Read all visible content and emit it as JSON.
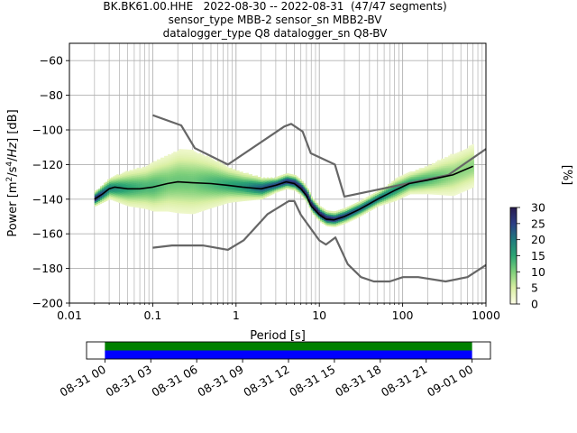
{
  "title_lines": [
    "BK.BK61.00.HHE   2022-08-30 -- 2022-08-31  (47/47 segments)",
    "sensor_type MBB-2 sensor_sn MBB2-BV",
    "datalogger_type Q8 datalogger_sn Q8-BV"
  ],
  "chart_data": {
    "type": "heatmap",
    "title": "BK.BK61.00.HHE   2022-08-30 -- 2022-08-31  (47/47 segments)",
    "xlabel": "Period [s]",
    "ylabel_text": "Power [m²/s⁴/Hz] [dB]",
    "x_scale": "log",
    "xlim": [
      0.01,
      1000
    ],
    "ylim": [
      -200,
      -50
    ],
    "x_ticks": [
      0.01,
      0.1,
      1,
      10,
      100,
      1000
    ],
    "x_tick_labels": [
      "0.01",
      "0.1",
      "1",
      "10",
      "100",
      "1000"
    ],
    "y_ticks": [
      -200,
      -180,
      -160,
      -140,
      -120,
      -100,
      -80,
      -60
    ],
    "y_tick_labels": [
      "−200",
      "−180",
      "−160",
      "−140",
      "−120",
      "−100",
      "−80",
      "−60"
    ],
    "grid": true,
    "colorbar": {
      "label": "[%]",
      "range": [
        0,
        30
      ],
      "ticks": [
        0,
        5,
        10,
        15,
        20,
        25,
        30
      ],
      "tick_labels": [
        "0",
        "5",
        "10",
        "15",
        "20",
        "25",
        "30"
      ],
      "colors": [
        "#fdfde6",
        "#d9efa3",
        "#7fd07b",
        "#2ba573",
        "#1f7a7e",
        "#2c3f86",
        "#291b4f"
      ]
    },
    "noise_model_high": {
      "name": "",
      "color": "#666666",
      "periods": [
        0.1,
        0.22,
        0.32,
        0.8,
        3.8,
        4.6,
        6.3,
        7.9,
        15.4,
        20,
        354.8,
        1000
      ],
      "values": [
        -91.5,
        -97.4,
        -110.5,
        -120,
        -98,
        -96.5,
        -101,
        -113.5,
        -120,
        -138.5,
        -126,
        -111
      ]
    },
    "noise_model_low": {
      "name": "",
      "color": "#666666",
      "periods": [
        0.1,
        0.17,
        0.4,
        0.8,
        1.24,
        2.4,
        4.3,
        5,
        6,
        10,
        12,
        15.6,
        21.9,
        31.6,
        45,
        70,
        101,
        154,
        328,
        600,
        1000
      ],
      "values": [
        -168,
        -166.7,
        -166.7,
        -169.2,
        -163.7,
        -148.6,
        -141.1,
        -141.1,
        -149,
        -163.8,
        -166.2,
        -162.1,
        -177.5,
        -185,
        -187.5,
        -187.5,
        -185,
        -185,
        -187.5,
        -185,
        -178
      ]
    },
    "mode_line": {
      "name": "",
      "color": "#000000",
      "periods": [
        0.02,
        0.025,
        0.03,
        0.035,
        0.05,
        0.07,
        0.1,
        0.15,
        0.2,
        0.3,
        0.5,
        0.8,
        1.2,
        2,
        3,
        4,
        5,
        6,
        7,
        8,
        10,
        12,
        15,
        20,
        30,
        50,
        80,
        120,
        200,
        400,
        700
      ],
      "values": [
        -140,
        -137,
        -134,
        -133,
        -134,
        -134,
        -133,
        -131,
        -130,
        -130.5,
        -131,
        -132,
        -133,
        -134,
        -132,
        -130,
        -131,
        -134,
        -138,
        -144,
        -149,
        -151.5,
        -152,
        -150,
        -146,
        -140,
        -135,
        -131,
        -129,
        -126,
        -121
      ]
    },
    "histogram_band": {
      "periods": [
        0.02,
        0.03,
        0.05,
        0.08,
        0.1,
        0.15,
        0.2,
        0.3,
        0.5,
        0.8,
        1.2,
        2,
        3,
        4,
        5,
        6,
        7,
        8,
        10,
        12,
        15,
        20,
        30,
        50,
        80,
        120,
        200,
        400,
        700
      ],
      "values": [
        -140,
        -134,
        -134,
        -133.5,
        -133,
        -131,
        -130,
        -130.5,
        -131,
        -132,
        -133,
        -134,
        -132,
        -130,
        -131,
        -134,
        -138,
        -144,
        -149,
        -151.5,
        -152,
        -150,
        -146,
        -140,
        -135,
        -131,
        -129,
        -126,
        -121
      ],
      "spread_db": [
        2,
        3,
        5,
        6,
        7,
        8,
        9,
        9,
        7,
        5,
        4,
        3,
        2,
        2,
        2,
        2,
        2,
        2,
        2,
        2,
        2,
        2,
        2,
        2,
        3,
        3,
        4,
        6,
        6
      ],
      "peak_percent": [
        28,
        18,
        14,
        12,
        12,
        10,
        10,
        10,
        12,
        14,
        16,
        22,
        24,
        26,
        26,
        28,
        28,
        30,
        28,
        28,
        26,
        24,
        22,
        20,
        16,
        14,
        12,
        8,
        8
      ]
    },
    "timeline": {
      "x_tick_labels": [
        "08-31 00",
        "08-31 03",
        "08-31 06",
        "08-31 09",
        "08-31 12",
        "08-31 15",
        "08-31 18",
        "08-31 21",
        "09-01 00"
      ],
      "range_hours": [
        -1.2,
        25.2
      ],
      "coverage_hours": [
        0,
        24
      ],
      "bar_colors": [
        "#008000",
        "#0000ff"
      ]
    }
  }
}
